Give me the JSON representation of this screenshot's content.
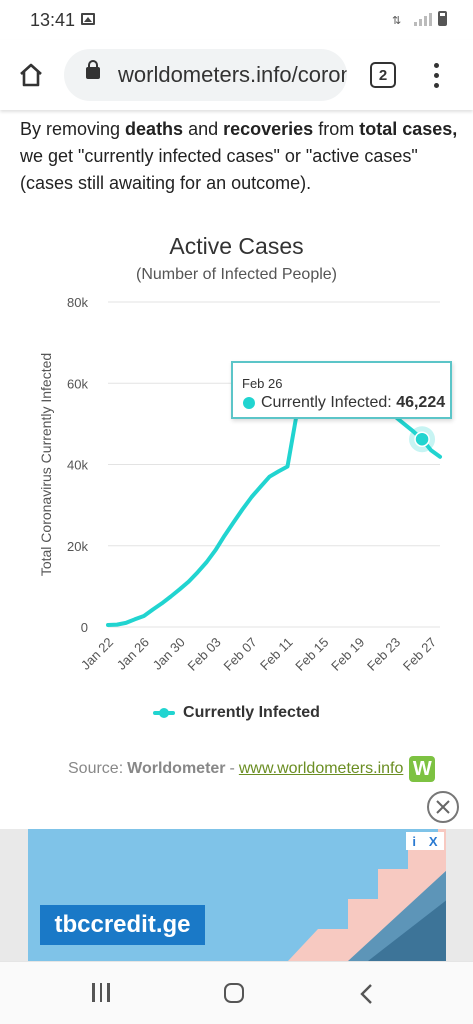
{
  "status_bar": {
    "time": "13:41",
    "icons": [
      "image-icon",
      "data-transfer-icon",
      "signal-icon",
      "battery-icon"
    ]
  },
  "browser": {
    "url": "worldometers.info/coronavirus",
    "tab_count": "2",
    "icons": [
      "home-icon",
      "lock-icon",
      "tabs-icon",
      "more-vert-icon"
    ]
  },
  "intro": {
    "t1": "By removing ",
    "t2": "deaths",
    "t3": " and ",
    "t4": "recoveries",
    "t5": " from ",
    "t6": "total cases,",
    "t7": " we get \"currently infected cases\" or \"active cases\" (cases still awaiting for an outcome)."
  },
  "chart_data": {
    "type": "line",
    "title": "Active Cases",
    "subtitle": "(Number of Infected People)",
    "ylabel": "Total Coronavirus Currently Infected",
    "xlabel": "",
    "ylim": [
      0,
      80000
    ],
    "yticks": [
      0,
      20000,
      40000,
      60000,
      80000
    ],
    "ytick_labels": [
      "0",
      "20k",
      "40k",
      "60k",
      "80k"
    ],
    "xtick_labels": [
      "Jan 22",
      "Jan 26",
      "Jan 30",
      "Feb 03",
      "Feb 07",
      "Feb 11",
      "Feb 15",
      "Feb 19",
      "Feb 23",
      "Feb 27"
    ],
    "grid": true,
    "color": "#21d4d0",
    "series": [
      {
        "name": "Currently Infected",
        "x": [
          "Jan 22",
          "Jan 23",
          "Jan 24",
          "Jan 25",
          "Jan 26",
          "Jan 27",
          "Jan 28",
          "Jan 29",
          "Jan 30",
          "Jan 31",
          "Feb 01",
          "Feb 02",
          "Feb 03",
          "Feb 04",
          "Feb 05",
          "Feb 06",
          "Feb 07",
          "Feb 08",
          "Feb 09",
          "Feb 10",
          "Feb 11",
          "Feb 12",
          "Feb 13",
          "Feb 14",
          "Feb 15",
          "Feb 16",
          "Feb 17",
          "Feb 18",
          "Feb 19",
          "Feb 20",
          "Feb 21",
          "Feb 22",
          "Feb 23",
          "Feb 24",
          "Feb 25",
          "Feb 26",
          "Feb 27",
          "Feb 28"
        ],
        "values": [
          500,
          600,
          1000,
          1900,
          2700,
          4300,
          5800,
          7500,
          9300,
          11200,
          13500,
          16000,
          19000,
          22500,
          25800,
          29000,
          32000,
          34500,
          37000,
          38300,
          39500,
          52000,
          56500,
          57500,
          58000,
          58300,
          58500,
          58300,
          57500,
          56000,
          55000,
          53500,
          51800,
          50000,
          48200,
          46224,
          43500,
          41900
        ]
      }
    ],
    "tooltip": {
      "date": "Feb 26",
      "label": "Currently Infected:",
      "value": "46,224"
    },
    "legend": {
      "position": "bottom-center",
      "label": "Currently Infected"
    }
  },
  "source": {
    "prefix": "Source:",
    "name": "Worldometer",
    "dash": "-",
    "link": "www.worldometers.info",
    "logo_letter": "W"
  },
  "ad": {
    "brand": "tbccredit.ge",
    "choices_info": "i",
    "choices_close": "X",
    "close_icon": "close-circle-icon"
  },
  "nav": {
    "icons": [
      "recents-icon",
      "home-outline-icon",
      "back-icon"
    ]
  }
}
